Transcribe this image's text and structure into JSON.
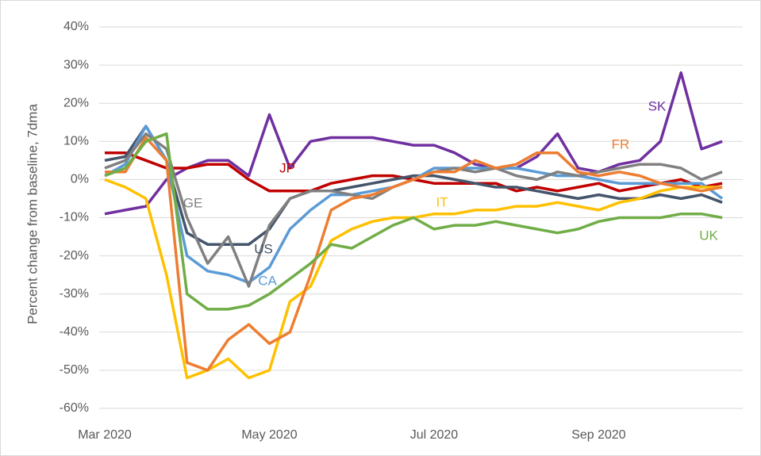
{
  "chart_data": {
    "type": "line",
    "y_label": "Percent change from baseline, 7dma",
    "x": [
      3,
      3.25,
      3.5,
      3.75,
      4,
      4.25,
      4.5,
      4.75,
      5,
      5.25,
      5.5,
      5.75,
      6,
      6.25,
      6.5,
      6.75,
      7,
      7.25,
      7.5,
      7.75,
      8,
      8.25,
      8.5,
      8.75,
      9,
      9.25,
      9.5,
      9.75,
      10,
      10.25,
      10.5
    ],
    "xlim": [
      3,
      10.75
    ],
    "xticks": [
      {
        "value": 3,
        "label": "Mar 2020"
      },
      {
        "value": 5,
        "label": "May 2020"
      },
      {
        "value": 7,
        "label": "Jul 2020"
      },
      {
        "value": 9,
        "label": "Sep 2020"
      }
    ],
    "ylim": [
      -60,
      40
    ],
    "yticks": [
      {
        "value": -60,
        "label": "-60%"
      },
      {
        "value": -50,
        "label": "-50%"
      },
      {
        "value": -40,
        "label": "-40%"
      },
      {
        "value": -30,
        "label": "-30%"
      },
      {
        "value": -20,
        "label": "-20%"
      },
      {
        "value": -10,
        "label": "-10%"
      },
      {
        "value": 0,
        "label": "0%"
      },
      {
        "value": 10,
        "label": "10%"
      },
      {
        "value": 20,
        "label": "20%"
      },
      {
        "value": 30,
        "label": "30%"
      },
      {
        "value": 40,
        "label": "40%"
      }
    ],
    "grid": true,
    "series": [
      {
        "name": "SK",
        "color": "#7030a0",
        "values": [
          -9,
          -8,
          -7,
          0,
          3,
          5,
          5,
          1,
          17,
          3,
          10,
          11,
          11,
          11,
          10,
          9,
          9,
          7,
          4,
          3,
          3,
          6,
          12,
          3,
          2,
          4,
          5,
          10,
          28,
          8,
          10
        ]
      },
      {
        "name": "JP",
        "color": "#c00000",
        "values": [
          7,
          7,
          5,
          3,
          3,
          4,
          4,
          0,
          -3,
          -3,
          -3,
          -1,
          0,
          1,
          1,
          0,
          -1,
          -1,
          -1,
          -1,
          -3,
          -2,
          -3,
          -2,
          -1,
          -3,
          -2,
          -1,
          0,
          -2,
          -1
        ]
      },
      {
        "name": "US",
        "color": "#44546a",
        "values": [
          5,
          6,
          14,
          5,
          -14,
          -17,
          -17,
          -17,
          -13,
          -5,
          -3,
          -3,
          -2,
          -1,
          0,
          1,
          1,
          0,
          -1,
          -2,
          -2,
          -3,
          -4,
          -5,
          -4,
          -5,
          -5,
          -4,
          -5,
          -4,
          -6
        ]
      },
      {
        "name": "CA",
        "color": "#5b9bd5",
        "values": [
          1,
          4,
          14,
          5,
          -20,
          -24,
          -25,
          -27,
          -23,
          -13,
          -8,
          -4,
          -4,
          -3,
          -2,
          0,
          3,
          3,
          3,
          3,
          3,
          2,
          1,
          1,
          0,
          -1,
          -1,
          -1,
          -1,
          -1,
          -5
        ]
      },
      {
        "name": "GE",
        "color": "#808080",
        "values": [
          3,
          5,
          12,
          8,
          -10,
          -22,
          -15,
          -28,
          -12,
          -5,
          -3,
          -3,
          -4,
          -5,
          -2,
          0,
          2,
          3,
          2,
          3,
          1,
          0,
          2,
          1,
          2,
          3,
          4,
          4,
          3,
          0,
          2
        ]
      },
      {
        "name": "IT",
        "color": "#ffc000",
        "values": [
          0,
          -2,
          -5,
          -25,
          -52,
          -50,
          -47,
          -52,
          -50,
          -32,
          -28,
          -16,
          -13,
          -11,
          -10,
          -10,
          -9,
          -9,
          -8,
          -8,
          -7,
          -7,
          -6,
          -7,
          -8,
          -6,
          -5,
          -3,
          -2,
          -2,
          -2
        ]
      },
      {
        "name": "FR",
        "color": "#ed7d31",
        "values": [
          2,
          2,
          11,
          5,
          -48,
          -50,
          -42,
          -38,
          -43,
          -40,
          -25,
          -8,
          -5,
          -4,
          -2,
          0,
          2,
          2,
          5,
          3,
          4,
          7,
          7,
          2,
          1,
          2,
          1,
          -1,
          -2,
          -3,
          -2
        ]
      },
      {
        "name": "UK",
        "color": "#70ad47",
        "values": [
          1,
          3,
          10,
          12,
          -30,
          -34,
          -34,
          -33,
          -30,
          -26,
          -22,
          -17,
          -18,
          -15,
          -12,
          -10,
          -13,
          -12,
          -12,
          -11,
          -12,
          -13,
          -14,
          -13,
          -11,
          -10,
          -10,
          -10,
          -9,
          -9,
          -10
        ]
      }
    ]
  }
}
